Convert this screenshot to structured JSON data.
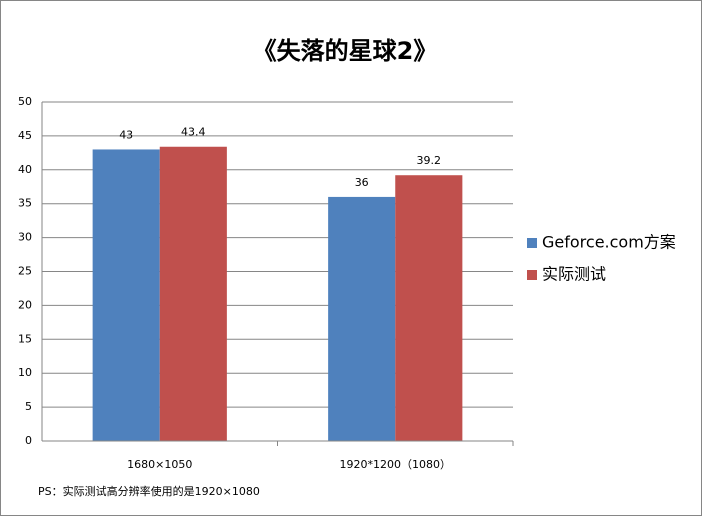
{
  "chart_data": {
    "type": "bar",
    "title": "《失落的星球2》",
    "categories": [
      "1680×1050",
      "1920*1200（1080）"
    ],
    "series": [
      {
        "name": "Geforce.com方案",
        "color": "#4f81bd",
        "values": [
          43,
          36
        ]
      },
      {
        "name": "实际测试",
        "color": "#c0504d",
        "values": [
          43.4,
          39.2
        ]
      }
    ],
    "ylim": [
      0,
      50
    ],
    "yticks": [
      0,
      5,
      10,
      15,
      20,
      25,
      30,
      35,
      40,
      45,
      50
    ],
    "grid": true,
    "legend": "right",
    "note": "PS：实际测试高分辨率使用的是1920×1080"
  }
}
